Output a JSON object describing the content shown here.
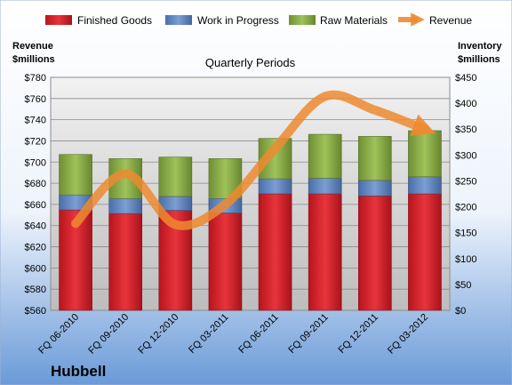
{
  "company": "Hubbell",
  "chart_data": {
    "type": "bar",
    "stacked": true,
    "title": "Quarterly Periods",
    "ylabel_left": "Revenue $millions",
    "ylabel_right": "Inventory $millions",
    "left_title_lines": [
      "Revenue",
      "$millions"
    ],
    "right_title_lines": [
      "Inventory",
      "$millions"
    ],
    "categories": [
      "FQ 06-2010",
      "FQ 09-2010",
      "FQ 12-2010",
      "FQ 03-2011",
      "FQ 06-2011",
      "FQ 09-2011",
      "FQ 12-2011",
      "FQ 03-2012"
    ],
    "left_axis": {
      "min": 560,
      "max": 780,
      "step": 20,
      "format": "$"
    },
    "right_axis": {
      "min": 0,
      "max": 450,
      "step": 50,
      "format": "$"
    },
    "series": [
      {
        "name": "Finished Goods",
        "axis": "right",
        "type": "bar",
        "color": "#d0202a",
        "values": [
          194,
          187,
          193,
          188,
          225,
          225,
          221,
          225
        ]
      },
      {
        "name": "Work in Progress",
        "axis": "right",
        "type": "bar",
        "color": "#5b7fb8",
        "values": [
          29,
          29,
          27,
          28,
          29,
          30,
          30,
          33
        ]
      },
      {
        "name": "Raw Materials",
        "axis": "right",
        "type": "bar",
        "color": "#86a845",
        "values": [
          78,
          77,
          76,
          77,
          78,
          85,
          85,
          89
        ]
      },
      {
        "name": "Revenue",
        "axis": "left",
        "type": "line",
        "color": "#ee8a30",
        "values": [
          642,
          689,
          641,
          660,
          713,
          762,
          749,
          731
        ]
      }
    ],
    "legend": "top",
    "grid": true
  }
}
